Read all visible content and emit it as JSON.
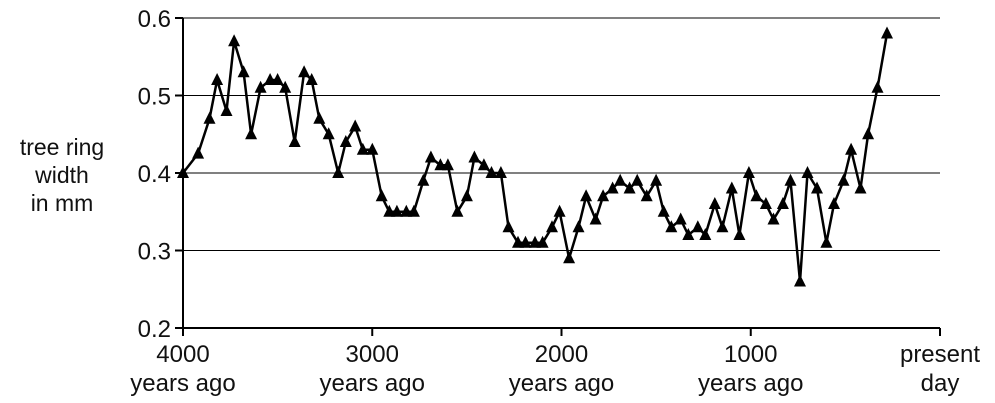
{
  "chart_data": {
    "type": "line",
    "ylabel_lines": [
      "tree ring",
      "width",
      "in mm"
    ],
    "ylim": [
      0.2,
      0.6
    ],
    "yticks": [
      0.2,
      0.3,
      0.4,
      0.5,
      0.6
    ],
    "ytick_labels": [
      "0.2",
      "0.3",
      "0.4",
      "0.5",
      "0.6"
    ],
    "xlim": [
      4000,
      0
    ],
    "xticks": [
      4000,
      3000,
      2000,
      1000,
      0
    ],
    "xtick_labels": [
      [
        "4000",
        "years ago"
      ],
      [
        "3000",
        "years ago"
      ],
      [
        "2000",
        "years ago"
      ],
      [
        "1000",
        "years ago"
      ],
      [
        "present",
        "day"
      ]
    ],
    "grid": "horizontal",
    "marker": "triangle",
    "series": [
      {
        "color": "#000000",
        "points": [
          [
            4000,
            0.4
          ],
          [
            3920,
            0.425
          ],
          [
            3860,
            0.47
          ],
          [
            3820,
            0.52
          ],
          [
            3770,
            0.48
          ],
          [
            3730,
            0.57
          ],
          [
            3680,
            0.53
          ],
          [
            3640,
            0.45
          ],
          [
            3590,
            0.51
          ],
          [
            3540,
            0.52
          ],
          [
            3500,
            0.52
          ],
          [
            3460,
            0.51
          ],
          [
            3410,
            0.44
          ],
          [
            3360,
            0.53
          ],
          [
            3320,
            0.52
          ],
          [
            3280,
            0.47
          ],
          [
            3230,
            0.45
          ],
          [
            3180,
            0.4
          ],
          [
            3140,
            0.44
          ],
          [
            3090,
            0.46
          ],
          [
            3050,
            0.43
          ],
          [
            3000,
            0.43
          ],
          [
            2950,
            0.37
          ],
          [
            2910,
            0.35
          ],
          [
            2870,
            0.35
          ],
          [
            2820,
            0.35
          ],
          [
            2780,
            0.35
          ],
          [
            2730,
            0.39
          ],
          [
            2690,
            0.42
          ],
          [
            2640,
            0.41
          ],
          [
            2600,
            0.41
          ],
          [
            2550,
            0.35
          ],
          [
            2500,
            0.37
          ],
          [
            2460,
            0.42
          ],
          [
            2410,
            0.41
          ],
          [
            2370,
            0.4
          ],
          [
            2320,
            0.4
          ],
          [
            2280,
            0.33
          ],
          [
            2230,
            0.31
          ],
          [
            2190,
            0.31
          ],
          [
            2140,
            0.31
          ],
          [
            2100,
            0.31
          ],
          [
            2050,
            0.33
          ],
          [
            2010,
            0.35
          ],
          [
            1960,
            0.29
          ],
          [
            1910,
            0.33
          ],
          [
            1870,
            0.37
          ],
          [
            1820,
            0.34
          ],
          [
            1780,
            0.37
          ],
          [
            1730,
            0.38
          ],
          [
            1690,
            0.39
          ],
          [
            1640,
            0.38
          ],
          [
            1600,
            0.39
          ],
          [
            1550,
            0.37
          ],
          [
            1500,
            0.39
          ],
          [
            1460,
            0.35
          ],
          [
            1420,
            0.33
          ],
          [
            1370,
            0.34
          ],
          [
            1330,
            0.32
          ],
          [
            1280,
            0.33
          ],
          [
            1240,
            0.32
          ],
          [
            1190,
            0.36
          ],
          [
            1150,
            0.33
          ],
          [
            1100,
            0.38
          ],
          [
            1060,
            0.32
          ],
          [
            1010,
            0.4
          ],
          [
            970,
            0.37
          ],
          [
            920,
            0.36
          ],
          [
            880,
            0.34
          ],
          [
            830,
            0.36
          ],
          [
            790,
            0.39
          ],
          [
            740,
            0.26
          ],
          [
            700,
            0.4
          ],
          [
            650,
            0.38
          ],
          [
            600,
            0.31
          ],
          [
            560,
            0.36
          ],
          [
            510,
            0.39
          ],
          [
            470,
            0.43
          ],
          [
            420,
            0.38
          ],
          [
            380,
            0.45
          ],
          [
            330,
            0.51
          ],
          [
            280,
            0.58
          ]
        ]
      }
    ]
  }
}
